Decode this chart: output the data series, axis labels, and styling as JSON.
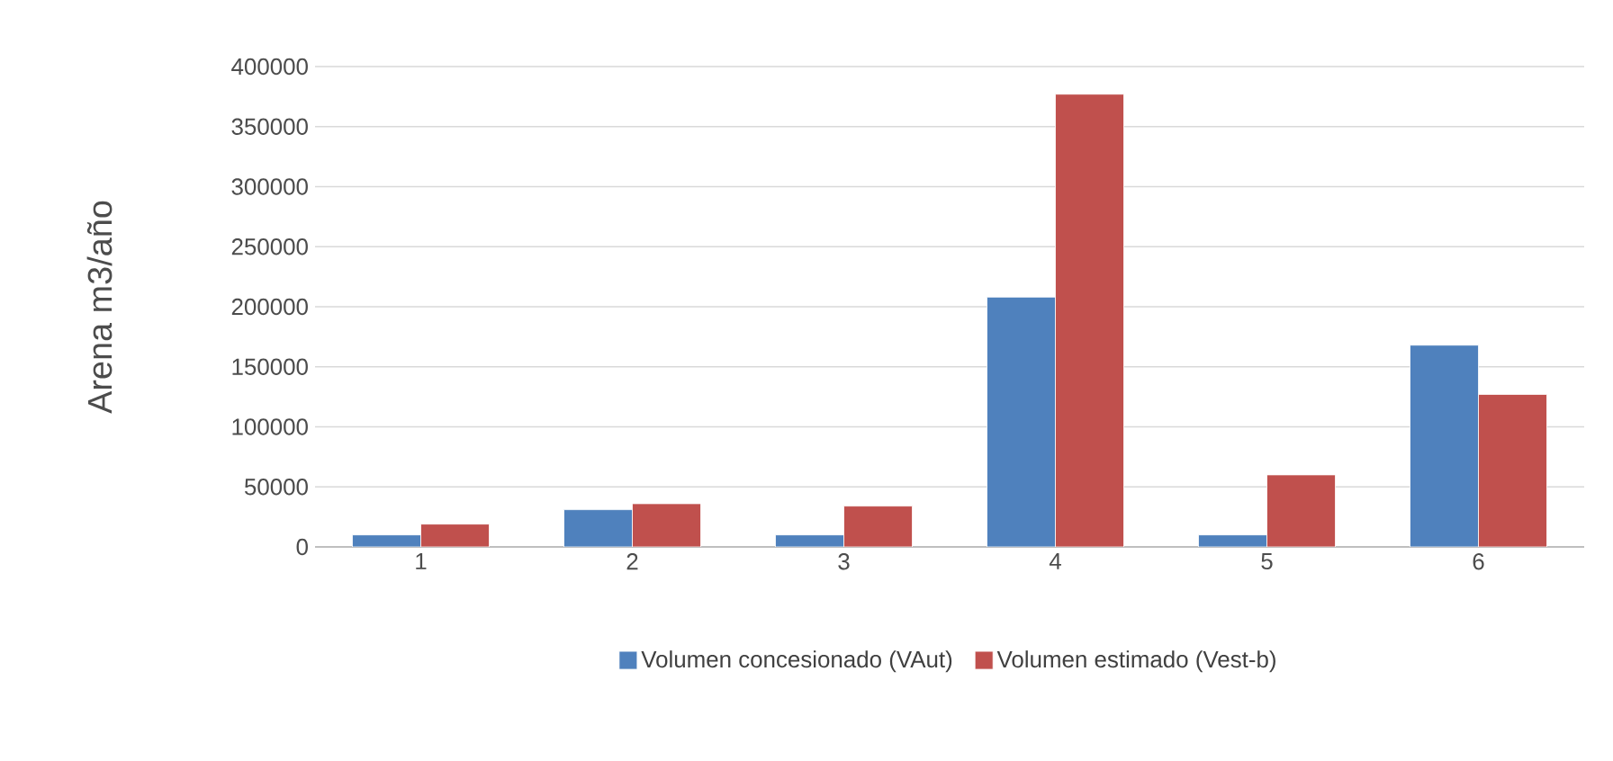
{
  "chart_data": {
    "type": "bar",
    "ylabel": "Arena  m3/año",
    "categories": [
      "1",
      "2",
      "3",
      "4",
      "5",
      "6"
    ],
    "series": [
      {
        "name": "Volumen concesionado (VAut)",
        "color": "#4f81bd",
        "values": [
          10000,
          31000,
          10000,
          208000,
          10000,
          168000
        ]
      },
      {
        "name": "Volumen estimado (Vest-b)",
        "color": "#c0504d",
        "values": [
          19000,
          36000,
          34000,
          377000,
          60000,
          127000
        ]
      }
    ],
    "ylim": [
      0,
      400000
    ],
    "yticks": [
      0,
      50000,
      100000,
      150000,
      200000,
      250000,
      300000,
      350000,
      400000
    ],
    "grid": "y",
    "legend": "bottom"
  }
}
